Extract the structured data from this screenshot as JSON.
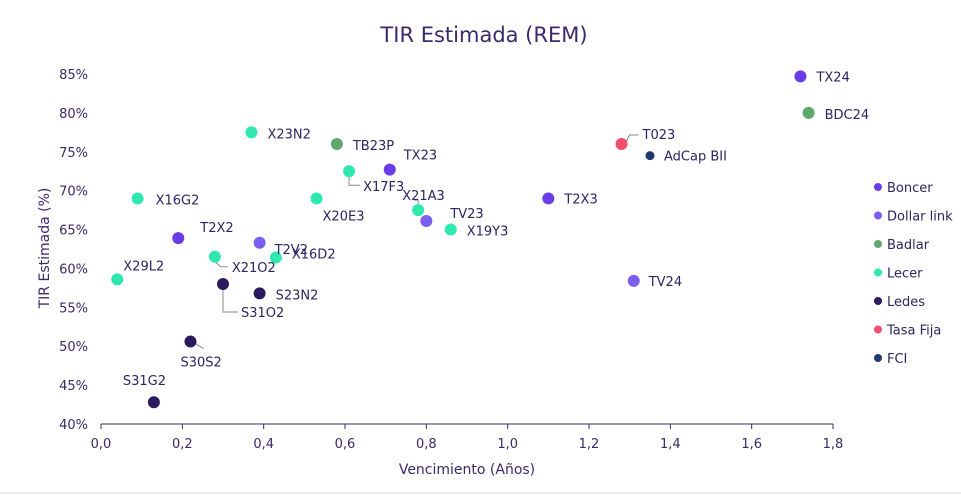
{
  "chart_data": {
    "type": "scatter",
    "title": "TIR Estimada (REM)",
    "xlabel": "Vencimiento (Años)",
    "ylabel": "TIR Estimada (%)",
    "xlim": [
      0,
      1.8
    ],
    "ylim": [
      40,
      85
    ],
    "x_ticks": [
      "0,0",
      "0,2",
      "0,4",
      "0,6",
      "0,8",
      "1,0",
      "1,2",
      "1,4",
      "1,6",
      "1,8"
    ],
    "y_ticks": [
      "40%",
      "45%",
      "50%",
      "55%",
      "60%",
      "65%",
      "70%",
      "75%",
      "80%",
      "85%"
    ],
    "grid": false,
    "legend_position": "right",
    "series": [
      {
        "name": "Boncer",
        "color": "#6a3de8",
        "points": [
          {
            "label": "TX24",
            "x": 1.72,
            "y": 84.7
          },
          {
            "label": "TX23",
            "x": 0.71,
            "y": 72.7
          },
          {
            "label": "T2X3",
            "x": 1.1,
            "y": 69.0
          },
          {
            "label": "T2X2",
            "x": 0.19,
            "y": 63.9
          }
        ]
      },
      {
        "name": "Dollar link",
        "color": "#7a5ff0",
        "points": [
          {
            "label": "T2V2",
            "x": 0.39,
            "y": 63.3
          },
          {
            "label": "TV23",
            "x": 0.8,
            "y": 66.1
          },
          {
            "label": "TV24",
            "x": 1.31,
            "y": 58.4
          }
        ]
      },
      {
        "name": "Badlar",
        "color": "#5fa86e",
        "points": [
          {
            "label": "BDC24",
            "x": 1.74,
            "y": 80.0
          },
          {
            "label": "TB23P",
            "x": 0.58,
            "y": 76.0
          }
        ]
      },
      {
        "name": "Lecer",
        "color": "#2ee8b0",
        "points": [
          {
            "label": "X23N2",
            "x": 0.37,
            "y": 77.5
          },
          {
            "label": "X16G2",
            "x": 0.09,
            "y": 69.0
          },
          {
            "label": "X17F3",
            "x": 0.61,
            "y": 72.5
          },
          {
            "label": "X20E3",
            "x": 0.53,
            "y": 69.0
          },
          {
            "label": "X21A3",
            "x": 0.78,
            "y": 67.5
          },
          {
            "label": "X19Y3",
            "x": 0.86,
            "y": 65.0
          },
          {
            "label": "X16D2",
            "x": 0.43,
            "y": 61.4
          },
          {
            "label": "X21O2",
            "x": 0.28,
            "y": 61.5
          },
          {
            "label": "X29L2",
            "x": 0.04,
            "y": 58.6
          }
        ]
      },
      {
        "name": "Ledes",
        "color": "#2b1a5e",
        "points": [
          {
            "label": "S23N2",
            "x": 0.39,
            "y": 56.8
          },
          {
            "label": "S31O2",
            "x": 0.3,
            "y": 58.0
          },
          {
            "label": "S30S2",
            "x": 0.22,
            "y": 50.6
          },
          {
            "label": "S31G2",
            "x": 0.13,
            "y": 42.8
          }
        ]
      },
      {
        "name": "Tasa Fija",
        "color": "#f0506e",
        "points": [
          {
            "label": "T023",
            "x": 1.28,
            "y": 76.0
          }
        ]
      },
      {
        "name": "FCI",
        "color": "#1f3a6b",
        "points": [
          {
            "label": "AdCap BII",
            "x": 1.35,
            "y": 74.5
          }
        ]
      }
    ]
  }
}
